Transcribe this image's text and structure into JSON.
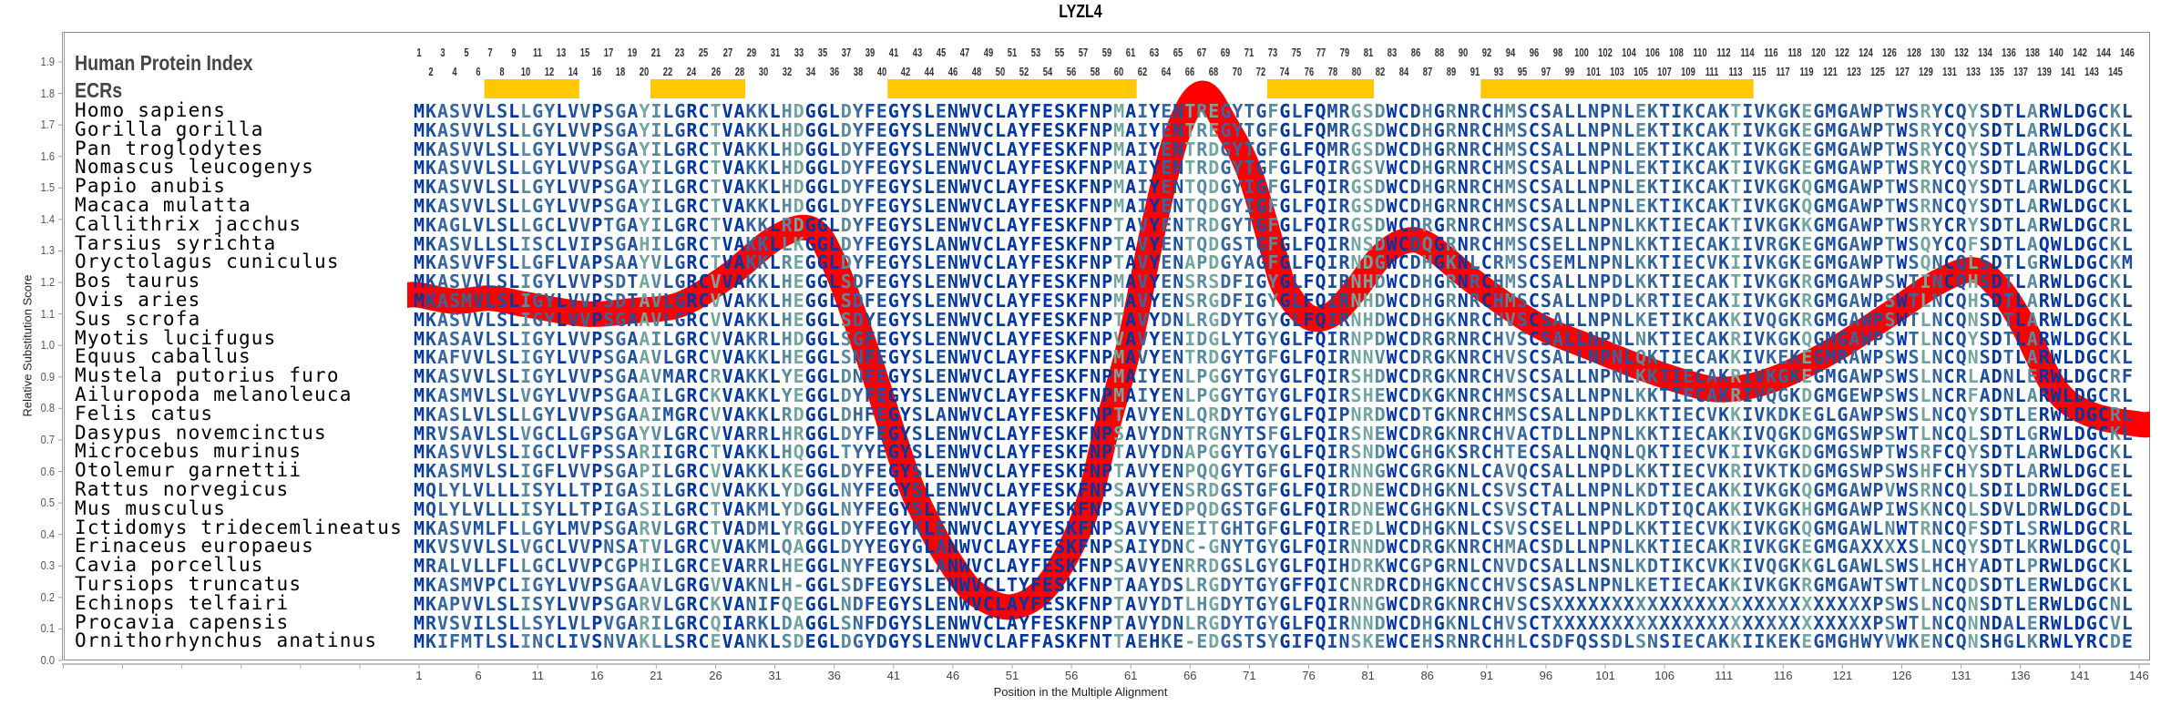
{
  "chart_data": {
    "type": "line",
    "title": "LYZL4",
    "ylabel": "Relative Substitution Score",
    "xlabel": "Position in the Multiple Alignment",
    "ylim": [
      0,
      1.9
    ],
    "xlim": [
      1,
      146
    ],
    "grid": false,
    "y_ticks": [
      "0.0",
      "0.1",
      "0.2",
      "0.3",
      "0.4",
      "0.5",
      "0.6",
      "0.7",
      "0.8",
      "0.9",
      "1.0",
      "1.1",
      "1.2",
      "1.3",
      "1.4",
      "1.5",
      "1.6",
      "1.7",
      "1.8",
      "1.9"
    ],
    "x_ticks": [
      1,
      6,
      11,
      16,
      21,
      26,
      31,
      36,
      41,
      46,
      51,
      56,
      61,
      66,
      71,
      76,
      81,
      86,
      91,
      96,
      101,
      106,
      111,
      116,
      121,
      126,
      131,
      136,
      141,
      146
    ],
    "series": [
      {
        "name": "Relative Substitution Score",
        "color": "#ff0000",
        "x": [
          1,
          4,
          7,
          10,
          15,
          19,
          23,
          27,
          31,
          34,
          36,
          39,
          42,
          44,
          46,
          48,
          51,
          54,
          57,
          59,
          61,
          63,
          65,
          67,
          69,
          71,
          73,
          74,
          76,
          78,
          80,
          82,
          84,
          86,
          90,
          95,
          100,
          104,
          108,
          111,
          115,
          120,
          125,
          129,
          132,
          134,
          136,
          139,
          142,
          146
        ],
        "y": [
          1.16,
          1.14,
          1.15,
          1.13,
          1.1,
          1.11,
          1.13,
          1.22,
          1.34,
          1.37,
          1.26,
          0.95,
          0.6,
          0.43,
          0.3,
          0.21,
          0.17,
          0.24,
          0.45,
          0.74,
          1.02,
          1.39,
          1.68,
          1.8,
          1.7,
          1.55,
          1.3,
          1.18,
          1.09,
          1.1,
          1.18,
          1.28,
          1.33,
          1.32,
          1.2,
          1.07,
          0.99,
          0.93,
          0.88,
          0.86,
          0.89,
          0.98,
          1.1,
          1.2,
          1.24,
          1.19,
          1.08,
          0.86,
          0.78,
          0.75
        ]
      }
    ],
    "ecrs": [
      [
        7,
        14
      ],
      [
        21,
        28
      ],
      [
        41,
        61
      ],
      [
        73,
        81
      ],
      [
        91,
        113
      ]
    ],
    "ecr_color": "#ffc800"
  },
  "header": {
    "index_label": "Human Protein Index",
    "ecr_label": "ECRs",
    "index_numbers_top": [
      1,
      3,
      5,
      7,
      9,
      11,
      13,
      15,
      17,
      19,
      21,
      23,
      25,
      27,
      29,
      31,
      33,
      35,
      37,
      39,
      41,
      43,
      45,
      47,
      49,
      51,
      53,
      55,
      57,
      59,
      61,
      63,
      65,
      67,
      69,
      71,
      73,
      75,
      77,
      79,
      81,
      83,
      86,
      88,
      90,
      92,
      94,
      96,
      98,
      100,
      102,
      104,
      106,
      108,
      110,
      112,
      114,
      116,
      118,
      120,
      122,
      124,
      126,
      128,
      130,
      132,
      134,
      136,
      138,
      140,
      142,
      144,
      146
    ],
    "index_numbers_bottom": [
      2,
      4,
      6,
      8,
      10,
      12,
      14,
      16,
      18,
      20,
      22,
      24,
      26,
      28,
      30,
      32,
      34,
      36,
      38,
      40,
      42,
      44,
      46,
      48,
      50,
      52,
      54,
      56,
      58,
      60,
      62,
      64,
      66,
      68,
      70,
      72,
      74,
      76,
      78,
      80,
      82,
      84,
      87,
      89,
      91,
      93,
      95,
      97,
      99,
      101,
      103,
      105,
      107,
      109,
      111,
      113,
      115,
      117,
      119,
      121,
      123,
      125,
      127,
      129,
      131,
      133,
      135,
      137,
      139,
      141,
      143,
      145
    ]
  },
  "colors": {
    "conserved": "#0336a3",
    "high": "#1d4f9e",
    "medium": "#37679e",
    "low": "#5a8aa0",
    "lower": "#74a6a0",
    "variable": "#8ec3a0"
  },
  "alignment": [
    {
      "species": "Homo sapiens",
      "sequence": "MKASVVLSLLGYLVVPSGAYILGRCTVAKKLHDGGLDYFEGYSLENWVCLAYFESKFNPMAIYENTREGYTGFGLFQMRGSDWCDHGRNRCHMSCSALLNPNLEKTIKCAKTIVKGKEGMGAWPTWSRYCQYSDTLARWLDGCKL"
    },
    {
      "species": "Gorilla gorilla",
      "sequence": "MKASVVLSLLGYLVVPSGAYILGRCTVAKKLHDGGLDYFEGYSLENWVCLAYFESKFNPMAIYENTREGYTGFGLFQMRGSDWCDHGRNRCHMSCSALLNPNLEKTIKCAKTIVKGKEGMGAWPTWSRYCQYSDTLARWLDGCKL"
    },
    {
      "species": "Pan troglodytes",
      "sequence": "MKASVVLSLLGYLVVPSGAYILGRCTVAKKLHDGGLDYFEGYSLENWVCLAYFESKFNPMAIYENTRDGYTGFGLFQMRGSDWCDHGRNRCHMSCSALLNPNLEKTIKCAKTIVKGKEGMGAWPTWSRYCQYSDTLARWLDGCKL"
    },
    {
      "species": "Nomascus leucogenys",
      "sequence": "MKASVVLSLLGYLVVPSGAYILGRCTVAKKLHDGGLDYFEGYSLENWVCLAYFESKFNPMAIYENTRDGYTGFGLFQIRGSVWCDHGRNRCHMSCSALLNPNLEKTIKCAKTIVKGKEGMGAWPTWSRYCQYSDTLARWLDGCKL"
    },
    {
      "species": "Papio anubis",
      "sequence": "MKASVVLSLLGYLVVPSGAYILGRCTVAKKLHDGGLDYFEGYSLENWVCLAYFESKFNPMAIYENTQDGYIGFGLFQIRGSDWCDHGRNRCHMSCSALLNPNLEKTIKCAKTIVKGKQGMGAWPTWSRNCQYSDTLARWLDGCKL"
    },
    {
      "species": "Macaca mulatta",
      "sequence": "MKASVVLSLLGYLVVPSGAYILGRCTVAKKLHDGGLDYFEGYSLENWVCLAYFESKFNPMAIYENTQDGYIGFGLFQIRGSDWCDHGRNRCHMSCSALLNPNLEKTIKCAKTIVKGKQGMGAWPTWSRNCQYSDTLARWLDGCKL"
    },
    {
      "species": "Callithrix jacchus",
      "sequence": "MKAGLVLSLLGCLVVPTGAYILGRCTVAKKLRDGGLDYFEGYSLENWVCLAYFESKFNPTAVYENTRDGYTGFGLFQIRGSDWCDRGRNRCHMSCSALLNPNLKKTIECAKTIVKGKKGMGAWPTWSRYCRYSDTLARWLDGCRL"
    },
    {
      "species": "Tarsius syrichta",
      "sequence": "MKASVLLSLISCLVIPSGAHILGRCTVAKKLLKGGLDYFEGYSLANWVCLAYFESKFNPTAVYENTQDGSTGFGLFQIRNSDWCDQGRNRCHMSCSELLNPNLKKTIECAKIIVRGKEGMGAWPTWSQYCQFSDTLAQWLDGCKL"
    },
    {
      "species": "Oryctolagus cuniculus",
      "sequence": "MKASVVFSLLGFLVAPSAAYVLGRCTVAKKLREGGLDYFEGYSLENWVCLAYFESKFNPTAVYENAPDGYAGFGLFQIRNDGWCDHGKNLCRMSCSEMLNPNLKKTIECVKIIVKGKEGMGAWPTWSQNCQLSDTLGRWLDGCKM"
    },
    {
      "species": "Bos taurus",
      "sequence": "MKASVVLSLIGYLVVPSDTAVLGRCVVAKKLHEGGLSDFEGYSLENWVCLAYFESKFNPMAVYENSRSDFIGYGLFQIRNHDWCDHGRNRCHMSCSALLNPDLKKTIECAKTIVKGKRGMGAWPSWTINCQHSDTLARWLDGCKL"
    },
    {
      "species": "Ovis aries",
      "sequence": "MKASMVLSLIGYLVVPSDTAVLGRCVVAKKLHEGGLSDFEGYSLENWVCLAYFESKFNPMAVYENSRGDFIGYGLFQIRNHDWCDHGRNRCHMSCSALLNPDLKRTIECAKIIVKGKRGMGAWPSWTLNCQHSDTLARWLDGCKL"
    },
    {
      "species": "Sus scrofa",
      "sequence": "MKASVVLSLIGYLVVPSGAAVLGRCVVAKKLHEGGLSDYEGYSLENWVCLAYFESKFNPTAVYDNLRGDYTGYGLFQIRNHDWCDHGKNRCHVSCSALLNPNLKETIKCAKKIVQGKRGMGAWPSWTLNCQNSDTLARWLDGCKL"
    },
    {
      "species": "Myotis lucifugus",
      "sequence": "MKASAVLSLIGYLVVPSGAAILGRCVVAKRLHDGGLSGFEGYSLENWVCLAYFESKFNPVAVYENIDGLYTGYGLFQIRNPDWCDRGRNRCHVSCSALLNPNLNKTIECAKRIVKGKQGMGAWPSWTLNCQYSDTLARWLDGCKL"
    },
    {
      "species": "Equus caballus",
      "sequence": "MKAFVVLSLIGYLVVPSGAAVLGRCVVAKKLHEGGLSNFEGYSLENWVCLAYFESKFNPMAVYENTRDGYTGFGLFQIRNNVWCDRGKNRCHVSCSALLNPNLQKTIECAKKIVKEKEGMRAWPSWSLNCQNSDTLARWLDGCKL"
    },
    {
      "species": "Mustela putorius furo",
      "sequence": "MKASVVLSLIGYLVVPSGAAVMARCRVAKKLYEGGLDNFEGYSLENWVCLAYFESKFNPMAIYENLPGGYTGYGLFQIRSHDWCDRGKNRCHVSCSALLNPNLKKTIECAKRIVKGKEGMGAWPSWSLNCRLADNLERWLDGCRF"
    },
    {
      "species": "Ailuropoda melanoleuca",
      "sequence": "MKASMVLSLVGYLVVPSGAAILGRCKVAKKLYEGGLDYFEGYSLENWVCLAYFESKFNPMAIYENLPGGYTGYGLFQIRSHEWCDKGKNRCHMSCSALLNPNLKKTIECAKRIVQGKDGMGEWPSWSLNCRFADNLARWLDGCRL"
    },
    {
      "species": "Felis catus",
      "sequence": "MKASLVLSLLGYLVVPSGAAIMGRCVVAKKLRDGGLDHFEGYSLANWVCLAYFESKFNPTAVYENLQRDYTGYGLFQIPNRDWCDTGKNRCHMSCSALLNPDLKKTIECVKKIVKDKEGLGAWPSWSLNCQYSDTLERWLDGCRL"
    },
    {
      "species": "Dasypus novemcinctus",
      "sequence": "MRVSAVLSLVGCLLGPSGAYVLGRCVVARRLHRGGLDYFEGYSLENWVCLAYFESKFNPSAVYDNTRGNYTSFGLFQIRSNEWCDRGKNRCHVACTDLLNPNLKKTIECAKKIVQGKDGMGSWPSWTLNCQLSDTLGRWLDGCKL"
    },
    {
      "species": "Microcebus murinus",
      "sequence": "MKASVVLSLIGCLVFPSSARIIGRCTVAKKLHQGGLTYYEGYSLENWVCLAYFESKFNPTAVYDNAPGGYTGYGLFQIRSNDWCGHGKSRCHTECSALLNQNLQKTIECVKIIVKGKDGMGSWPTWSRFCQYSDTLARWLDGCKL"
    },
    {
      "species": "Otolemur garnettii",
      "sequence": "MKASMVLSLIGFLVVPSGAPILGRCVVAKKLKEGGLDYFEGYSLENWVCLAYFESKFNPTAVYENPQQGYTGFGLFQIRNNGWCGRGKNLCAVQCSALLNPDLKKTIECVKRIVKTKDGMGSWPSWSHFCHYSDTLARWLDGCEL"
    },
    {
      "species": "Rattus norvegicus",
      "sequence": "MQLYLVLLLISYLLTPIGASILGRCVVAKKLYDGGLNYFEGYSLENWVCLAYFESKFNPSAVYENSRDGSTGFGLFQIRDNEWCDHGKNLCSVSCTALLNPNLKDTIECAKKIVKGKQGMGAWPVWSRNCQLSDILDRWLDGCEL"
    },
    {
      "species": "Mus musculus",
      "sequence": "MQLYLVLLLISYLLTPIGASILGRCTVAKMLYDGGLNYFEGYSLENWVCLAYFESKFNPSAVYEDPQDGSTGFGLFQIRDNEWCGHGKNLCSVSCTALLNPNLKDTIQCAKKIVKGKHGMGAWPIWSKNCQLSDVLDRWLDGCDL"
    },
    {
      "species": "Ictidomys tridecemlineatus",
      "sequence": "MKASVMLFLLGYLMVPSGARVLGRCTVADMLYRGGLDYFEGYKLENWVCLAYYESKFNPSAVYENEITGHTGFGLFQIREDLWCDHGKNLCSVSCSELLNPDLKKTIECVKKIVKGKQGMGAWLNWTRNCQFSDTLSRWLDGCRL"
    },
    {
      "species": "Erinaceus europaeus",
      "sequence": "MKVSVVLSLVGCLVVPNSATVLGRCVVAKMLQAGGLDYYEGYGLANWVCLAYFESKFNPSAIYDNC-GNYTGYGLFQIRNNDWCDRGKNRCHMACSDLLNPNLKKTIECAKRIVKGKEGMGAXXXXSLNCQYSDTLKRWLDGCQL"
    },
    {
      "species": "Cavia porcellus",
      "sequence": "MRALVLLFLLGCLVVPCGPHILGRCEVARRLHEGGLNYFEGYSLANWVCLAYFESKFNPSAVYENRRDGSLGYGLFQIHDRKWCGPGRNLCNVDCSALLNSNLKDTIKCVKKIVQGKKGLGAWLSWSLHCHYADTLPRWLDGCKL"
    },
    {
      "species": "Tursiops truncatus",
      "sequence": "MKASMVPCLIGYLVVPSGAAVLGRGVVAKNLH-GGLSDFEGYSLENWVCLTYFESKFNPTAAYDSLRGDYTGYGFFQICNRDRCDHGKNCCHVSCSASLNPNLKETIECAKKIVKGKRGMGAWTSWTLNCQDSDTLERWLDGCKL"
    },
    {
      "species": "Echinops telfairi",
      "sequence": "MKAPVVLSLISYLVVPSGARVLGRCKVANIFQEGGLNDFEGYSLENWVCLAYFESKFNPTAVYDTLHGDYTGYGLFQIRNNGWCDRGKNRCHVSCSXXXXXXXXXXXXXXXXXXXXXXXXXXXPSWSLNCQNSDTLERWLDGCNL"
    },
    {
      "species": "Procavia capensis",
      "sequence": "MRVSVILSLLSYLVLPVGARILGRCQIARKLDAGGLSNFDGYSLENWVCLAYFESKFNPTAVYDNLRGDYTGYGLFQIRNNDWCDHGKNLCHVSCTXXXXXXXXXXXXXXXXXXXXXXXXXXXPSWTLNCQNNDALERWLDGCVL"
    },
    {
      "species": "Ornithorhynchus anatinus",
      "sequence": "MKIFMTLSLINCLIVSNVAKLLSRCEVANKLSDEGLDGYDGYSLENWVCLAFFASKFNTTAEHKE-EDGSTSYGIFQINSKEWCEHSRNRCHHLCSDFQSSDLSNSIECAKKIIKEKEGMGHWYVWKENCQNSHGLKRWLYRCDE"
    }
  ]
}
